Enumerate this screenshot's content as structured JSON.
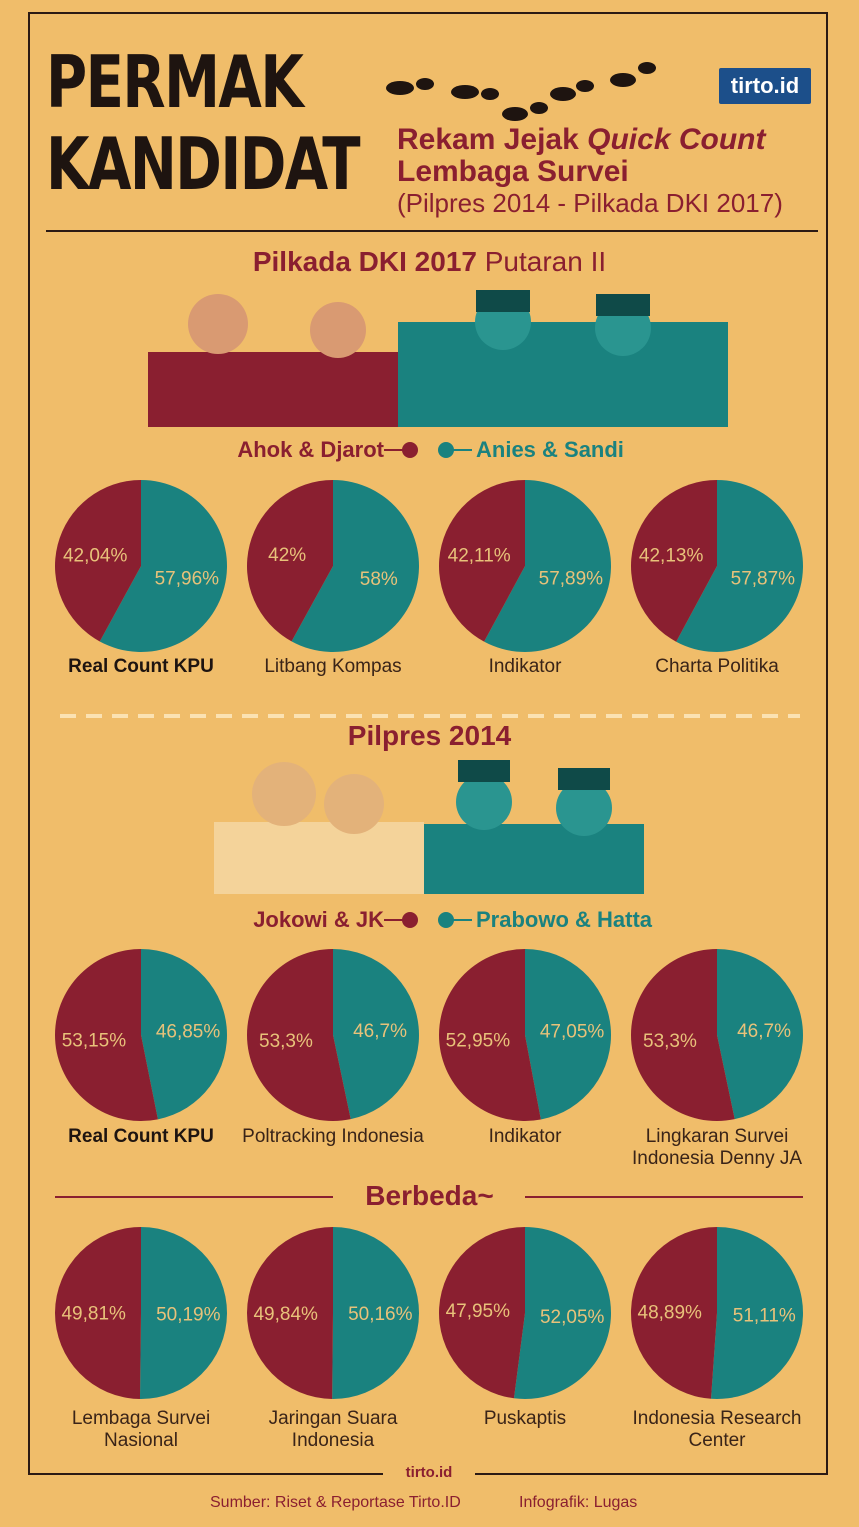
{
  "header": {
    "title_line1": "PERMAK",
    "title_line2": "KANDIDAT",
    "subtitle_part1": "Rekam Jejak ",
    "subtitle_italic": "Quick Count",
    "subtitle_line2": "Lembaga Survei",
    "subtitle_line3": "(Pilpres 2014 - Pilkada DKI 2017)",
    "logo_text": "tirto.id"
  },
  "colors": {
    "red": "#8a1f30",
    "teal": "#1a827f",
    "background": "#f0bd6a",
    "label_on_pie": "#e8c27a"
  },
  "section1": {
    "title_bold": "Pilkada DKI 2017",
    "title_light": " Putaran II",
    "legend_left": "Ahok & Djarot",
    "legend_right": "Anies & Sandi"
  },
  "section2": {
    "title": "Pilpres 2014",
    "legend_left": "Jokowi & JK",
    "legend_right": "Prabowo & Hatta"
  },
  "section3": {
    "title": "Berbeda~"
  },
  "footer": {
    "brand": "tirto.id",
    "source": "Sumber: Riset & Reportase Tirto.ID",
    "credit": "Infografik: Lugas"
  },
  "chart_data": [
    {
      "type": "pie",
      "group": "Pilkada DKI 2017 Putaran II",
      "series_names": [
        "Ahok & Djarot",
        "Anies & Sandi"
      ],
      "pies": [
        {
          "name": "Real Count KPU",
          "values": [
            42.04,
            57.96
          ],
          "labels": [
            "42,04%",
            "57,96%"
          ],
          "bold": true
        },
        {
          "name": "Litbang Kompas",
          "values": [
            42,
            58
          ],
          "labels": [
            "42%",
            "58%"
          ]
        },
        {
          "name": "Indikator",
          "values": [
            42.11,
            57.89
          ],
          "labels": [
            "42,11%",
            "57,89%"
          ]
        },
        {
          "name": "Charta Politika",
          "values": [
            42.13,
            57.87
          ],
          "labels": [
            "42,13%",
            "57,87%"
          ]
        }
      ]
    },
    {
      "type": "pie",
      "group": "Pilpres 2014",
      "series_names": [
        "Jokowi & JK",
        "Prabowo & Hatta"
      ],
      "pies": [
        {
          "name": "Real Count KPU",
          "values": [
            53.15,
            46.85
          ],
          "labels": [
            "53,15%",
            "46,85%"
          ],
          "bold": true
        },
        {
          "name": "Poltracking Indonesia",
          "values": [
            53.3,
            46.7
          ],
          "labels": [
            "53,3%",
            "46,7%"
          ]
        },
        {
          "name": "Indikator",
          "values": [
            52.95,
            47.05
          ],
          "labels": [
            "52,95%",
            "47,05%"
          ]
        },
        {
          "name": "Lingkaran Survei Indonesia Denny JA",
          "values": [
            53.3,
            46.7
          ],
          "labels": [
            "53,3%",
            "46,7%"
          ]
        }
      ]
    },
    {
      "type": "pie",
      "group": "Berbeda~",
      "series_names": [
        "Jokowi & JK",
        "Prabowo & Hatta"
      ],
      "pies": [
        {
          "name": "Lembaga Survei Nasional",
          "values": [
            49.81,
            50.19
          ],
          "labels": [
            "49,81%",
            "50,19%"
          ]
        },
        {
          "name": "Jaringan Suara Indonesia",
          "values": [
            49.84,
            50.16
          ],
          "labels": [
            "49,84%",
            "50,16%"
          ]
        },
        {
          "name": "Puskaptis",
          "values": [
            47.95,
            52.05
          ],
          "labels": [
            "47,95%",
            "52,05%"
          ]
        },
        {
          "name": "Indonesia Research Center",
          "values": [
            48.89,
            51.11
          ],
          "labels": [
            "48,89%",
            "51,11%"
          ]
        }
      ]
    }
  ]
}
